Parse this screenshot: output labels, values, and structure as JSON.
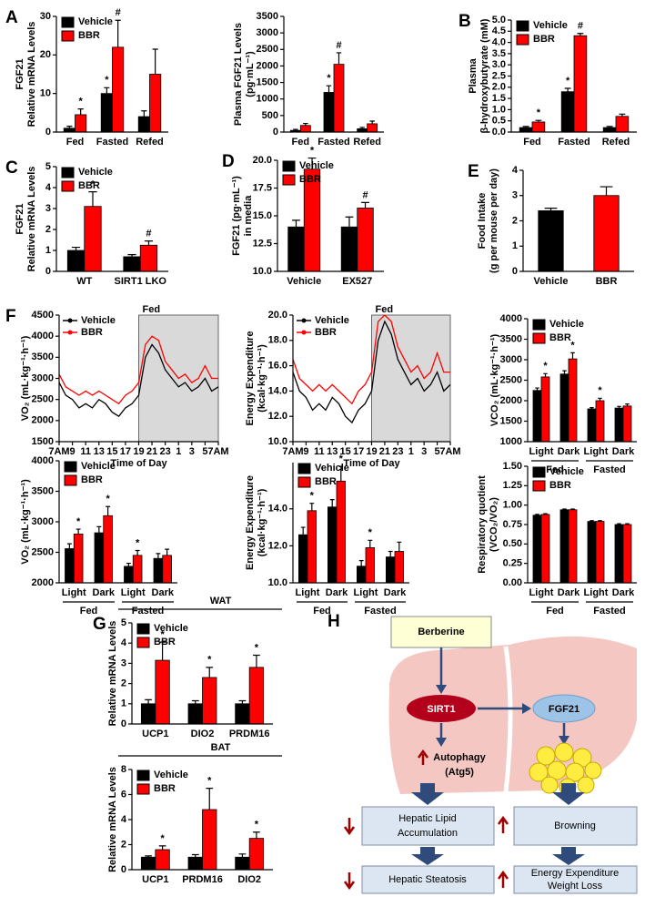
{
  "chart_data": [
    {
      "type": "bar",
      "panel": "A",
      "ylabel": [
        "FGF21",
        "Relative mRNA Levels"
      ],
      "categories": [
        "Fed",
        "Fasted",
        "Refed"
      ],
      "legend": "upper left",
      "series": [
        {
          "name": "Vehicle",
          "color": "#000000",
          "values": [
            1,
            10,
            4
          ],
          "errors": [
            0.5,
            1.5,
            1.5
          ],
          "annotations": [
            null,
            "*",
            null
          ]
        },
        {
          "name": "BBR",
          "color": "#ff0000",
          "values": [
            4.5,
            22,
            15
          ],
          "errors": [
            1.5,
            7,
            6.5
          ],
          "annotations": [
            "*",
            "#",
            null
          ]
        }
      ],
      "ylim": [
        0,
        30
      ],
      "yticks": [
        0,
        10,
        20,
        30
      ]
    },
    {
      "type": "bar",
      "ylabel": [
        "Plasma FGF21 Levels",
        "(pg·mL⁻¹)"
      ],
      "categories": [
        "Fed",
        "Fasted",
        "Refed"
      ],
      "series": [
        {
          "name": "Vehicle",
          "color": "#000000",
          "values": [
            50,
            1200,
            100
          ],
          "errors": [
            30,
            200,
            40
          ],
          "annotations": [
            null,
            "*",
            null
          ]
        },
        {
          "name": "BBR",
          "color": "#ff0000",
          "values": [
            200,
            2050,
            250
          ],
          "errors": [
            60,
            350,
            80
          ],
          "annotations": [
            null,
            "#",
            null
          ]
        }
      ],
      "ylim": [
        0,
        3500
      ],
      "yticks": [
        0,
        500,
        1000,
        1500,
        2000,
        2500,
        3000,
        3500
      ]
    },
    {
      "type": "bar",
      "panel": "B",
      "ylabel": [
        "Plasma",
        "β-hydroxybutyrate (mM)"
      ],
      "categories": [
        "Fed",
        "Fasted",
        "Refed"
      ],
      "legend": "upper left",
      "series": [
        {
          "name": "Vehicle",
          "color": "#000000",
          "values": [
            0.2,
            1.8,
            0.2
          ],
          "errors": [
            0.05,
            0.15,
            0.05
          ],
          "annotations": [
            null,
            "*",
            null
          ]
        },
        {
          "name": "BBR",
          "color": "#ff0000",
          "values": [
            0.45,
            4.3,
            0.7
          ],
          "errors": [
            0.07,
            0.1,
            0.1
          ],
          "annotations": [
            "*",
            "#",
            null
          ]
        }
      ],
      "ylim": [
        0,
        5
      ],
      "yticks": [
        {
          "value": 0,
          "label": "0.0"
        },
        0.5,
        {
          "value": 1,
          "label": "1.0"
        },
        1.5,
        {
          "value": 2,
          "label": "2.0"
        },
        2.5,
        {
          "value": 3,
          "label": "3.0"
        },
        3.5,
        {
          "value": 4,
          "label": "4.0"
        },
        4.5,
        {
          "value": 5,
          "label": "5.0"
        }
      ]
    },
    {
      "type": "bar",
      "panel": "C",
      "ylabel": [
        "FGF21",
        "Relative mRNA Levels"
      ],
      "categories": [
        "WT",
        "SIRT1 LKO"
      ],
      "legend": "upper left",
      "series": [
        {
          "name": "Vehicle",
          "color": "#000000",
          "values": [
            1.0,
            0.7
          ],
          "errors": [
            0.15,
            0.1
          ],
          "annotations": [
            null,
            null
          ]
        },
        {
          "name": "BBR",
          "color": "#ff0000",
          "values": [
            3.1,
            1.25
          ],
          "errors": [
            0.7,
            0.2
          ],
          "annotations": [
            "*",
            "#"
          ]
        }
      ],
      "ylim": [
        0,
        5
      ],
      "yticks": [
        0,
        1,
        2,
        3,
        4,
        5
      ]
    },
    {
      "type": "bar",
      "panel": "D",
      "ylabel": [
        "FGF21 (pg·mL⁻¹)",
        "in media"
      ],
      "categories": [
        "Vehicle",
        "EX527"
      ],
      "legend": "upper left",
      "series": [
        {
          "name": "Vehicle",
          "color": "#000000",
          "values": [
            14,
            14
          ],
          "errors": [
            0.6,
            0.9
          ],
          "annotations": [
            null,
            null
          ]
        },
        {
          "name": "BBR",
          "color": "#ff0000",
          "values": [
            19.2,
            15.7
          ],
          "errors": [
            1.0,
            0.5
          ],
          "annotations": [
            "*",
            "#"
          ]
        }
      ],
      "ylim": [
        10,
        20
      ],
      "yticks": [
        {
          "value": 10,
          "label": "10.0"
        },
        12.5,
        {
          "value": 15,
          "label": "15.0"
        },
        17.5,
        {
          "value": 20,
          "label": "20.0"
        }
      ]
    },
    {
      "type": "bar",
      "panel": "E",
      "ylabel": [
        "Food Intake",
        "(g per mouse per day)"
      ],
      "categories": [
        "Vehicle",
        "BBR"
      ],
      "values": [
        2.4,
        3.0
      ],
      "errors": [
        0.1,
        0.35
      ],
      "colors": [
        "#000000",
        "#ff0000"
      ],
      "ylim": [
        0,
        4
      ],
      "yticks": [
        0,
        1,
        2,
        3,
        4
      ]
    },
    {
      "type": "line",
      "panel": "F",
      "ylabel": [
        "VO₂ (mL·kg⁻¹·h⁻¹)"
      ],
      "xlabel": "Time of Day",
      "legend": "upper left",
      "highlight": {
        "label": "Fed",
        "x": [
          19,
          31
        ]
      },
      "x": [
        7,
        8,
        9,
        10,
        11,
        12,
        13,
        14,
        15,
        16,
        17,
        18,
        19,
        20,
        21,
        22,
        23,
        24,
        25,
        26,
        27,
        28,
        29,
        30,
        31
      ],
      "series": [
        {
          "name": "Vehicle",
          "color": "#000000",
          "values": [
            2900,
            2600,
            2500,
            2300,
            2400,
            2300,
            2500,
            2400,
            2200,
            2100,
            2300,
            2400,
            2600,
            3500,
            3800,
            3600,
            3200,
            3000,
            2800,
            2900,
            2700,
            2800,
            3000,
            2700,
            2800
          ]
        },
        {
          "name": "BBR",
          "color": "#ff0000",
          "values": [
            3100,
            2800,
            2700,
            2600,
            2700,
            2600,
            2700,
            2600,
            2500,
            2400,
            2600,
            2700,
            2900,
            3800,
            4000,
            3900,
            3400,
            3200,
            3000,
            3100,
            2900,
            3000,
            3300,
            3000,
            3000
          ]
        }
      ],
      "xlim": [
        7,
        31
      ],
      "xticks": [
        {
          "value": 7,
          "label": "7AM"
        },
        9,
        11,
        13,
        15,
        17,
        19,
        21,
        23,
        {
          "value": 25,
          "label": "1"
        },
        {
          "value": 27,
          "label": "3"
        },
        {
          "value": 29,
          "label": "5"
        },
        {
          "value": 31,
          "label": "7AM"
        }
      ],
      "ylim": [
        1500,
        4500
      ],
      "yticks": [
        1500,
        2000,
        2500,
        3000,
        3500,
        4000,
        4500
      ]
    },
    {
      "type": "line",
      "ylabel": [
        "Energy Expenditure",
        "(kcal·kg⁻¹·h⁻¹)"
      ],
      "xlabel": "Time of Day",
      "legend": "upper left",
      "highlight": {
        "label": "Fed",
        "x": [
          19,
          31
        ]
      },
      "x": [
        7,
        8,
        9,
        10,
        11,
        12,
        13,
        14,
        15,
        16,
        17,
        18,
        19,
        20,
        21,
        22,
        23,
        24,
        25,
        26,
        27,
        28,
        29,
        30,
        31
      ],
      "series": [
        {
          "name": "Vehicle",
          "color": "#000000",
          "values": [
            15.5,
            14.0,
            13.5,
            12.5,
            13.0,
            12.5,
            13.5,
            13.0,
            12.0,
            11.5,
            12.5,
            13.0,
            14.0,
            18.0,
            19.5,
            18.5,
            16.5,
            15.5,
            14.5,
            15.0,
            14.0,
            14.5,
            15.5,
            14.0,
            14.5
          ]
        },
        {
          "name": "BBR",
          "color": "#ff0000",
          "values": [
            16.5,
            15.0,
            14.5,
            14.0,
            14.5,
            14.0,
            14.5,
            14.0,
            13.5,
            13.0,
            14.0,
            14.5,
            15.5,
            19.5,
            20.0,
            19.5,
            17.5,
            16.5,
            15.5,
            16.0,
            15.0,
            15.5,
            17.0,
            15.5,
            15.5
          ]
        }
      ],
      "xlim": [
        7,
        31
      ],
      "xticks": [
        {
          "value": 7,
          "label": "7AM"
        },
        9,
        11,
        13,
        15,
        17,
        19,
        21,
        23,
        {
          "value": 25,
          "label": "1"
        },
        {
          "value": 27,
          "label": "3"
        },
        {
          "value": 29,
          "label": "5"
        },
        {
          "value": 31,
          "label": "7AM"
        }
      ],
      "ylim": [
        10,
        20
      ],
      "yticks": [
        {
          "value": 10,
          "label": "10.0"
        },
        {
          "value": 12,
          "label": "12.0"
        },
        {
          "value": 14,
          "label": "14.0"
        },
        {
          "value": 16,
          "label": "16.0"
        },
        {
          "value": 18,
          "label": "18.0"
        },
        {
          "value": 20,
          "label": "20.0"
        }
      ]
    },
    {
      "type": "bar",
      "ylabel": [
        "VCO₂ (mL·kg⁻¹·h⁻¹)"
      ],
      "categories": [
        "Light",
        "Dark",
        "Light",
        "Dark"
      ],
      "groups": [
        "Fed",
        "Fasted"
      ],
      "legend": "upper left",
      "series": [
        {
          "name": "Vehicle",
          "color": "#000000",
          "values": [
            2250,
            2650,
            1800,
            1820
          ],
          "errors": [
            60,
            80,
            30,
            40
          ],
          "annotations": [
            null,
            null,
            null,
            null
          ]
        },
        {
          "name": "BBR",
          "color": "#ff0000",
          "values": [
            2580,
            3020,
            2000,
            1870
          ],
          "errors": [
            80,
            150,
            60,
            50
          ],
          "annotations": [
            "*",
            "*",
            "*",
            null
          ]
        }
      ],
      "ylim": [
        1000,
        4000
      ],
      "yticks": [
        1000,
        1500,
        2000,
        2500,
        3000,
        3500,
        4000
      ]
    },
    {
      "type": "bar",
      "ylabel": [
        "VO₂ (mL·kg⁻¹·h⁻¹)"
      ],
      "categories": [
        "Light",
        "Dark",
        "Light",
        "Dark"
      ],
      "groups": [
        "Fed",
        "Fasted"
      ],
      "legend": "upper left",
      "series": [
        {
          "name": "Vehicle",
          "color": "#000000",
          "values": [
            2560,
            2820,
            2270,
            2400
          ],
          "errors": [
            80,
            100,
            50,
            80
          ],
          "annotations": [
            null,
            null,
            null,
            null
          ]
        },
        {
          "name": "BBR",
          "color": "#ff0000",
          "values": [
            2800,
            3100,
            2450,
            2450
          ],
          "errors": [
            80,
            150,
            80,
            100
          ],
          "annotations": [
            "*",
            "*",
            "*",
            null
          ]
        }
      ],
      "ylim": [
        2000,
        4000
      ],
      "yticks": [
        2000,
        2500,
        3000,
        3500,
        4000
      ]
    },
    {
      "type": "bar",
      "ylabel": [
        "Energy Expenditure",
        "(kcal·kg⁻¹·h⁻¹)"
      ],
      "categories": [
        "Light",
        "Dark",
        "Light",
        "Dark"
      ],
      "groups": [
        "Fed",
        "Fasted"
      ],
      "legend": "upper left",
      "series": [
        {
          "name": "Vehicle",
          "color": "#000000",
          "values": [
            12.6,
            14.1,
            10.9,
            11.4
          ],
          "errors": [
            0.4,
            0.4,
            0.3,
            0.3
          ],
          "annotations": [
            null,
            null,
            null,
            null
          ]
        },
        {
          "name": "BBR",
          "color": "#ff0000",
          "values": [
            13.9,
            15.5,
            11.9,
            11.7
          ],
          "errors": [
            0.4,
            0.8,
            0.4,
            0.5
          ],
          "annotations": [
            "*",
            "*",
            "*",
            null
          ]
        }
      ],
      "ylim": [
        10,
        16.5
      ],
      "yticks": [
        {
          "value": 10,
          "label": "10.0"
        },
        {
          "value": 12,
          "label": "12.0"
        },
        {
          "value": 14,
          "label": "14.0"
        }
      ]
    },
    {
      "type": "bar",
      "ylabel": [
        "Respiratory quotient",
        "(VCO₂/VO₂)"
      ],
      "categories": [
        "Light",
        "Dark",
        "Light",
        "Dark"
      ],
      "groups": [
        "Fed",
        "Fasted"
      ],
      "legend": "upper left",
      "series": [
        {
          "name": "Vehicle",
          "color": "#000000",
          "values": [
            0.87,
            0.94,
            0.79,
            0.75
          ],
          "errors": [
            0.01,
            0.01,
            0.01,
            0.01
          ],
          "annotations": [
            null,
            null,
            null,
            null
          ]
        },
        {
          "name": "BBR",
          "color": "#ff0000",
          "values": [
            0.88,
            0.94,
            0.79,
            0.75
          ],
          "errors": [
            0.01,
            0.01,
            0.01,
            0.01
          ],
          "annotations": [
            null,
            null,
            null,
            null
          ]
        }
      ],
      "ylim": [
        0,
        1.5
      ],
      "yticks": [
        {
          "value": 0,
          "label": "0.00"
        },
        0.25,
        {
          "value": 0.5,
          "label": "0.50"
        },
        0.75,
        {
          "value": 1,
          "label": "1.00"
        },
        1.25,
        {
          "value": 1.5,
          "label": "1.50"
        }
      ]
    },
    {
      "type": "bar",
      "panel": "G",
      "title": "WAT",
      "ylabel": [
        "Relative mRNA Levels"
      ],
      "categories": [
        "UCP1",
        "DIO2",
        "PRDM16"
      ],
      "legend": "upper left",
      "series": [
        {
          "name": "Vehicle",
          "color": "#000000",
          "values": [
            1.0,
            1.0,
            1.0
          ],
          "errors": [
            0.2,
            0.15,
            0.15
          ],
          "annotations": [
            null,
            null,
            null
          ]
        },
        {
          "name": "BBR",
          "color": "#ff0000",
          "values": [
            3.15,
            2.3,
            2.8
          ],
          "errors": [
            0.9,
            0.5,
            0.6
          ],
          "annotations": [
            "*",
            "*",
            "*"
          ]
        }
      ],
      "ylim": [
        0,
        5
      ],
      "yticks": [
        0,
        1,
        2,
        3,
        4,
        5
      ]
    },
    {
      "type": "bar",
      "title": "BAT",
      "ylabel": [
        "Relative mRNA Levels"
      ],
      "categories": [
        "UCP1",
        "PRDM16",
        "DIO2"
      ],
      "legend": "upper left",
      "series": [
        {
          "name": "Vehicle",
          "color": "#000000",
          "values": [
            1.0,
            1.0,
            1.0
          ],
          "errors": [
            0.1,
            0.2,
            0.25
          ],
          "annotations": [
            null,
            null,
            null
          ]
        },
        {
          "name": "BBR",
          "color": "#ff0000",
          "values": [
            1.6,
            4.8,
            2.5
          ],
          "errors": [
            0.3,
            1.7,
            0.5
          ],
          "annotations": [
            "*",
            "*",
            "*"
          ]
        }
      ],
      "ylim": [
        0,
        8
      ],
      "yticks": [
        0,
        2,
        4,
        6,
        8
      ]
    }
  ],
  "diagram": {
    "panel": "H",
    "berberine": "Berberine",
    "sirt1": "SIRT1",
    "fgf21": "FGF21",
    "autophagy": [
      "Autophagy",
      "(Atg5)"
    ],
    "lipid": [
      "Hepatic Lipid",
      "Accumulation"
    ],
    "browning": "Browning",
    "steatosis": "Hepatic Steatosis",
    "energy": [
      "Energy Expenditure",
      "Weight Loss"
    ]
  }
}
